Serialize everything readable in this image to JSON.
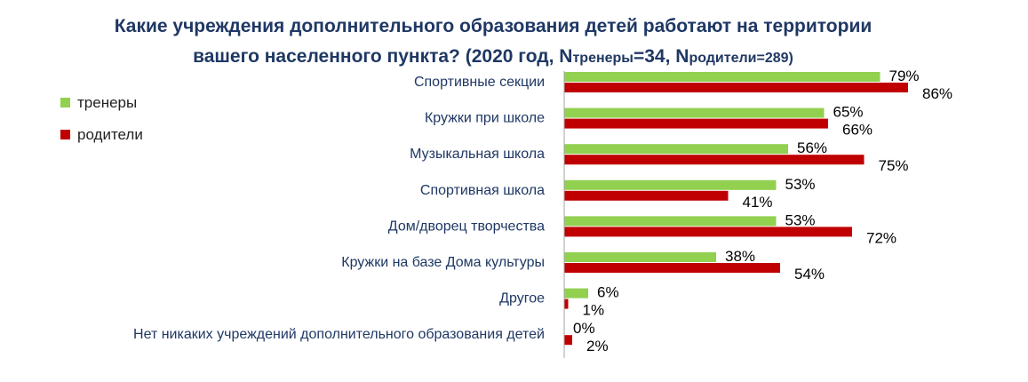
{
  "chart_data": {
    "type": "bar",
    "orientation": "horizontal",
    "title_line1": "Какие учреждения дополнительного образования детей работают на территории",
    "title_line2_main": "вашего населенного пункта? (2020 год, N",
    "title_sub1": "тренеры",
    "title_mid": "=34, N",
    "title_sub2": "родители",
    "title_end": "=289)",
    "categories": [
      "Спортивные секции",
      "Кружки при школе",
      "Музыкальная школа",
      "Спортивная школа",
      "Дом/дворец творчества",
      "Кружки на базе Дома культуры",
      "Другое",
      "Нет никаких учреждений дополнительного образования детей"
    ],
    "series": [
      {
        "name": "тренеры",
        "color": "#92d050",
        "values": [
          79,
          65,
          56,
          53,
          53,
          38,
          6,
          0
        ],
        "labels": [
          "79%",
          "65%",
          "56%",
          "53%",
          "53%",
          "38%",
          "6%",
          "0%"
        ]
      },
      {
        "name": "родители",
        "color": "#c00000",
        "values": [
          86,
          66,
          75,
          41,
          72,
          54,
          1,
          2
        ],
        "labels": [
          "86%",
          "66%",
          "75%",
          "41%",
          "72%",
          "54%",
          "1%",
          "2%"
        ]
      }
    ],
    "xlim": [
      0,
      100
    ],
    "grid": false,
    "legend_position": "top-left"
  }
}
